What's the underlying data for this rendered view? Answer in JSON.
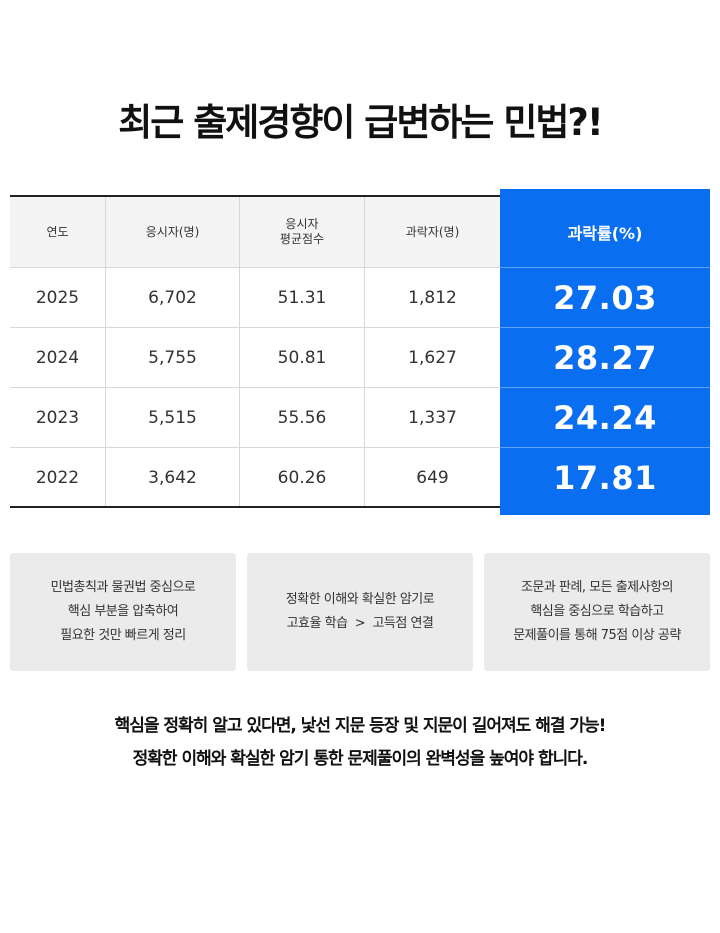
{
  "title": "최근 출제경향이 급변하는 민법?!",
  "table": {
    "headers": [
      "연도",
      "응시자(명)",
      "응시자\n평균점수",
      "과락자(명)",
      "과락률(%)"
    ],
    "header_lines": {
      "h0": [
        "연도"
      ],
      "h1": [
        "응시자(명)"
      ],
      "h2": [
        "응시자",
        "평균점수"
      ],
      "h3": [
        "과락자(명)"
      ],
      "h4": [
        "과락률(%)"
      ]
    },
    "rows": [
      {
        "year": "2025",
        "applicants": "6,702",
        "avg_score": "51.31",
        "failed": "1,812",
        "fail_rate": "27.03"
      },
      {
        "year": "2024",
        "applicants": "5,755",
        "avg_score": "50.81",
        "failed": "1,627",
        "fail_rate": "28.27"
      },
      {
        "year": "2023",
        "applicants": "5,515",
        "avg_score": "55.56",
        "failed": "1,337",
        "fail_rate": "24.24"
      },
      {
        "year": "2022",
        "applicants": "3,642",
        "avg_score": "60.26",
        "failed": "649",
        "fail_rate": "17.81"
      }
    ],
    "highlight_color": "#0a6ef0"
  },
  "features": [
    {
      "lines": [
        "민법총칙과 물권법 중심으로",
        "핵심 부분을 압축하여",
        "필요한 것만 빠르게 정리"
      ]
    },
    {
      "lines": [
        "정확한 이해와 확실한 암기로",
        "고효율 학습  >  고득점 연결"
      ]
    },
    {
      "lines": [
        "조문과 판례, 모든 출제사항의",
        "핵심을 중심으로 학습하고",
        "문제풀이를 통해 75점 이상 공략"
      ]
    }
  ],
  "summary": {
    "line1": "핵심을 정확히 알고 있다면, 낯선 지문 등장 및 지문이 길어져도 해결 가능!",
    "line2": "정확한 이해와 확실한 암기 통한 문제풀이의 완벽성을 높여야 합니다."
  }
}
